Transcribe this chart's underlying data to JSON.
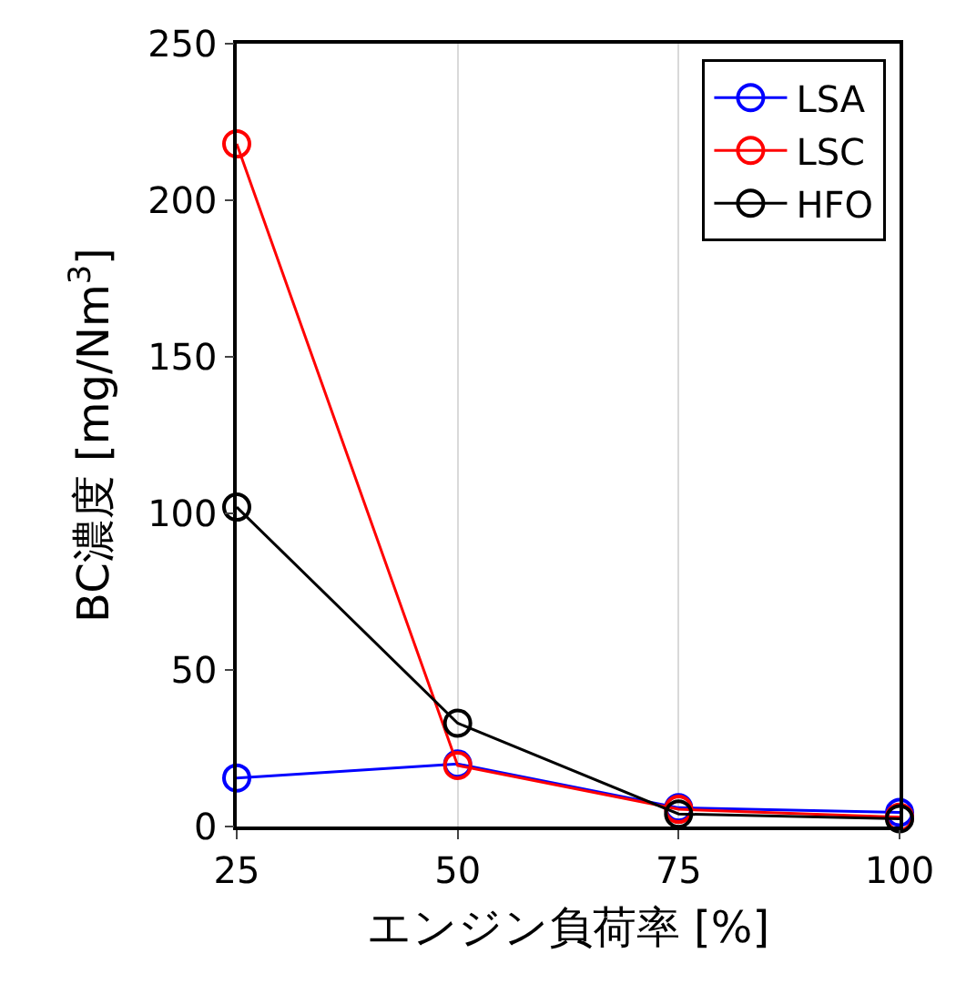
{
  "chart_data": {
    "type": "line",
    "xlabel": "エンジン負荷率 [%]",
    "ylabel": "BC濃度 [mg/Nm$^{3}$]",
    "x": [
      25,
      50,
      75,
      100
    ],
    "series": [
      {
        "name": "LSA",
        "color": "#0000ff",
        "values": [
          15.5,
          20,
          6,
          4.5
        ]
      },
      {
        "name": "LSC",
        "color": "#ff0000",
        "values": [
          218,
          19.5,
          5.5,
          3
        ]
      },
      {
        "name": "HFO",
        "color": "#000000",
        "values": [
          102,
          33,
          4,
          2.5
        ]
      }
    ],
    "xlim": [
      25,
      100
    ],
    "xticks": [
      25,
      50,
      75,
      100
    ],
    "ylim": [
      0,
      250
    ],
    "yticks": [
      0,
      50,
      100,
      150,
      200,
      250
    ],
    "grid": "x",
    "legend": "top right",
    "marker": "circle",
    "line_style": "solid"
  }
}
